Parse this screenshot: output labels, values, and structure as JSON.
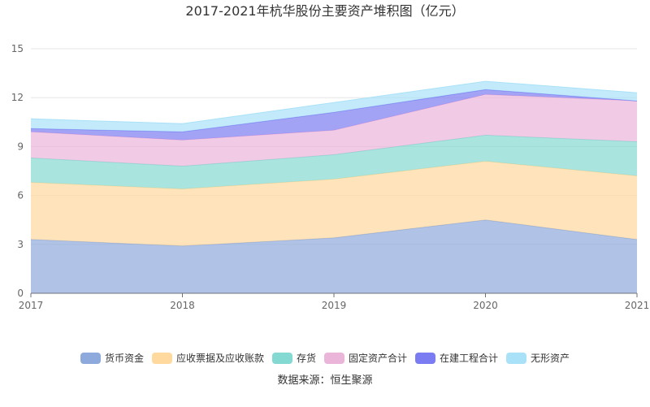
{
  "chart_data": {
    "type": "area",
    "stacked": true,
    "title": "2017-2021年杭华股份主要资产堆积图（亿元）",
    "xlabel": "",
    "ylabel": "",
    "ylim": [
      0,
      15
    ],
    "yticks": [
      0,
      3,
      6,
      9,
      12,
      15
    ],
    "categories": [
      "2017",
      "2018",
      "2019",
      "2020",
      "2021"
    ],
    "grid": true,
    "legend_position": "bottom",
    "series": [
      {
        "name": "货币资金",
        "color": "#8eaadc",
        "values": [
          3.3,
          2.9,
          3.4,
          4.5,
          3.3
        ]
      },
      {
        "name": "应收票据及应收账款",
        "color": "#ffd99e",
        "values": [
          3.5,
          3.5,
          3.6,
          3.6,
          3.9
        ]
      },
      {
        "name": "存货",
        "color": "#84d9d2",
        "values": [
          1.5,
          1.4,
          1.5,
          1.6,
          2.1
        ]
      },
      {
        "name": "固定资产合计",
        "color": "#ebb5da",
        "values": [
          1.6,
          1.6,
          1.5,
          2.5,
          2.5
        ]
      },
      {
        "name": "在建工程合计",
        "color": "#7c7cf2",
        "values": [
          0.2,
          0.5,
          1.1,
          0.3,
          0.0
        ]
      },
      {
        "name": "无形资产",
        "color": "#a9e1f8",
        "values": [
          0.6,
          0.5,
          0.6,
          0.5,
          0.5
        ]
      }
    ],
    "source": "数据来源：恒生聚源"
  }
}
